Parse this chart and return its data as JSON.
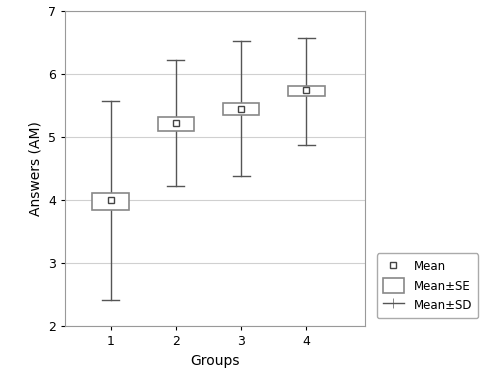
{
  "groups": [
    1,
    2,
    3,
    4
  ],
  "means": [
    4.0,
    5.22,
    5.45,
    5.75
  ],
  "se_low": [
    3.85,
    5.1,
    5.35,
    5.65
  ],
  "se_high": [
    4.12,
    5.32,
    5.55,
    5.82
  ],
  "sd_low": [
    2.42,
    4.22,
    4.38,
    4.88
  ],
  "sd_high": [
    5.58,
    6.22,
    6.52,
    6.57
  ],
  "xlabel": "Groups",
  "ylabel": "Answers (AM)",
  "xlim": [
    0.3,
    4.9
  ],
  "ylim": [
    2.0,
    7.0
  ],
  "yticks": [
    2,
    3,
    4,
    5,
    6,
    7
  ],
  "xticks": [
    1,
    2,
    3,
    4
  ],
  "box_color": "#888888",
  "mean_marker_color": "white",
  "mean_marker_edge": "#444444",
  "whisker_color": "#555555",
  "grid_color": "#d0d0d0",
  "legend_labels": [
    "Mean",
    "Mean±SE",
    "Mean±SD"
  ],
  "box_width": 0.28,
  "capsize": 0.13
}
